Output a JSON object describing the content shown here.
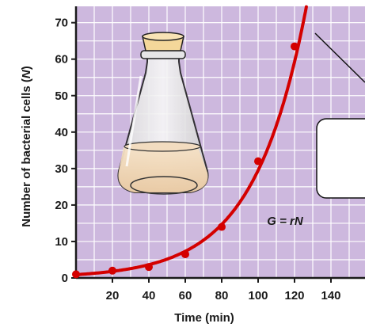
{
  "chart_data": {
    "type": "line",
    "title": "",
    "xlabel": "Time (min)",
    "ylabel_prefix": "Number of bacterial cells (",
    "ylabel_var": "N",
    "ylabel_suffix": ")",
    "xlim": [
      0,
      150
    ],
    "ylim": [
      0,
      75
    ],
    "x_ticks": [
      20,
      40,
      60,
      80,
      100,
      120,
      140
    ],
    "y_ticks": [
      0,
      10,
      20,
      30,
      40,
      50,
      60,
      70
    ],
    "grid": true,
    "equation": "G = rN",
    "series": [
      {
        "x": [
          0,
          20,
          40,
          60,
          80,
          100,
          120
        ],
        "y": [
          1,
          2,
          3,
          6.5,
          14,
          32,
          63.5
        ],
        "color": "#d40000"
      }
    ]
  },
  "colors": {
    "plot_background": "#cdb8de",
    "grid": "#ffffff",
    "curve": "#d40000",
    "axis": "#1a1a1a"
  }
}
